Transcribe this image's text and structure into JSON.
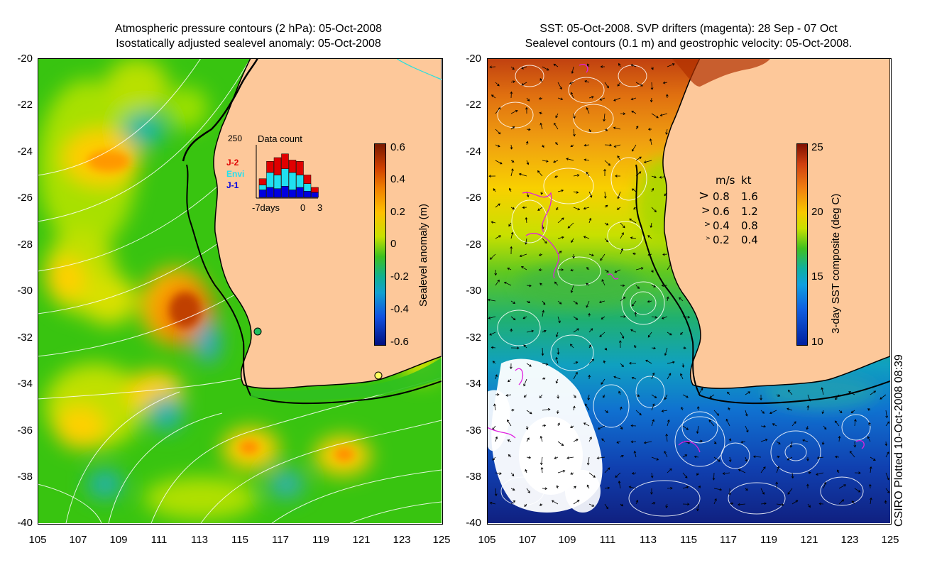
{
  "left_map": {
    "title_line1": "Atmospheric pressure contours (2 hPa): 05-Oct-2008",
    "title_line2": "Isostatically adjusted sealevel anomaly: 05-Oct-2008",
    "y_ticks": [
      "-20",
      "-22",
      "-24",
      "-26",
      "-28",
      "-30",
      "-32",
      "-34",
      "-36",
      "-38",
      "-40"
    ],
    "x_ticks": [
      "105",
      "107",
      "109",
      "111",
      "113",
      "115",
      "117",
      "119",
      "121",
      "123",
      "125"
    ],
    "colorbar": {
      "title": "Sealevel anomaly (m)",
      "labels": [
        "0.6",
        "0.4",
        "0.2",
        "0",
        "-0.2",
        "-0.4",
        "-0.6"
      ]
    },
    "inset": {
      "count_label": "250",
      "title": "Data count",
      "legend": [
        {
          "label": "J-2",
          "color": "#e00000"
        },
        {
          "label": "Envi",
          "color": "#20e0f0"
        },
        {
          "label": "J-1",
          "color": "#0000e0"
        }
      ],
      "x_left": "-7days",
      "x_mid": "0",
      "x_right": "3",
      "bars": [
        {
          "j1": 30,
          "envi": 20,
          "j2": 25
        },
        {
          "j1": 40,
          "envi": 60,
          "j2": 45
        },
        {
          "j1": 35,
          "envi": 55,
          "j2": 70
        },
        {
          "j1": 45,
          "envi": 70,
          "j2": 60
        },
        {
          "j1": 30,
          "envi": 70,
          "j2": 50
        },
        {
          "j1": 40,
          "envi": 50,
          "j2": 55
        },
        {
          "j1": 25,
          "envi": 30,
          "j2": 35
        },
        {
          "j1": 20,
          "envi": 0,
          "j2": 20
        }
      ]
    }
  },
  "right_map": {
    "title_line1": "SST: 05-Oct-2008. SVP drifters (magenta): 28 Sep - 07 Oct",
    "title_line2": "Sealevel contours (0.1 m) and geostrophic velocity: 05-Oct-2008.",
    "y_ticks": [
      "-20",
      "-22",
      "-24",
      "-26",
      "-28",
      "-30",
      "-32",
      "-34",
      "-36",
      "-38",
      "-40"
    ],
    "x_ticks": [
      "105",
      "107",
      "109",
      "111",
      "113",
      "115",
      "117",
      "119",
      "121",
      "123",
      "125"
    ],
    "colorbar": {
      "title": "3-day SST composite (deg C)",
      "labels": [
        "25",
        "20",
        "15",
        "10"
      ]
    },
    "velocity_legend": {
      "header_ms": "m/s",
      "header_kt": "kt",
      "rows": [
        {
          "ms": "0.8",
          "kt": "1.6"
        },
        {
          "ms": "0.6",
          "kt": "1.2"
        },
        {
          "ms": "0.4",
          "kt": "0.8"
        },
        {
          "ms": "0.2",
          "kt": "0.4"
        }
      ]
    }
  },
  "credit": "CSIRO Plotted 10-Oct-2008 08:39",
  "colors": {
    "land": "#fdc89a",
    "coast": "#000000",
    "drifter": "#e020e0",
    "contour": "#ffffff"
  }
}
